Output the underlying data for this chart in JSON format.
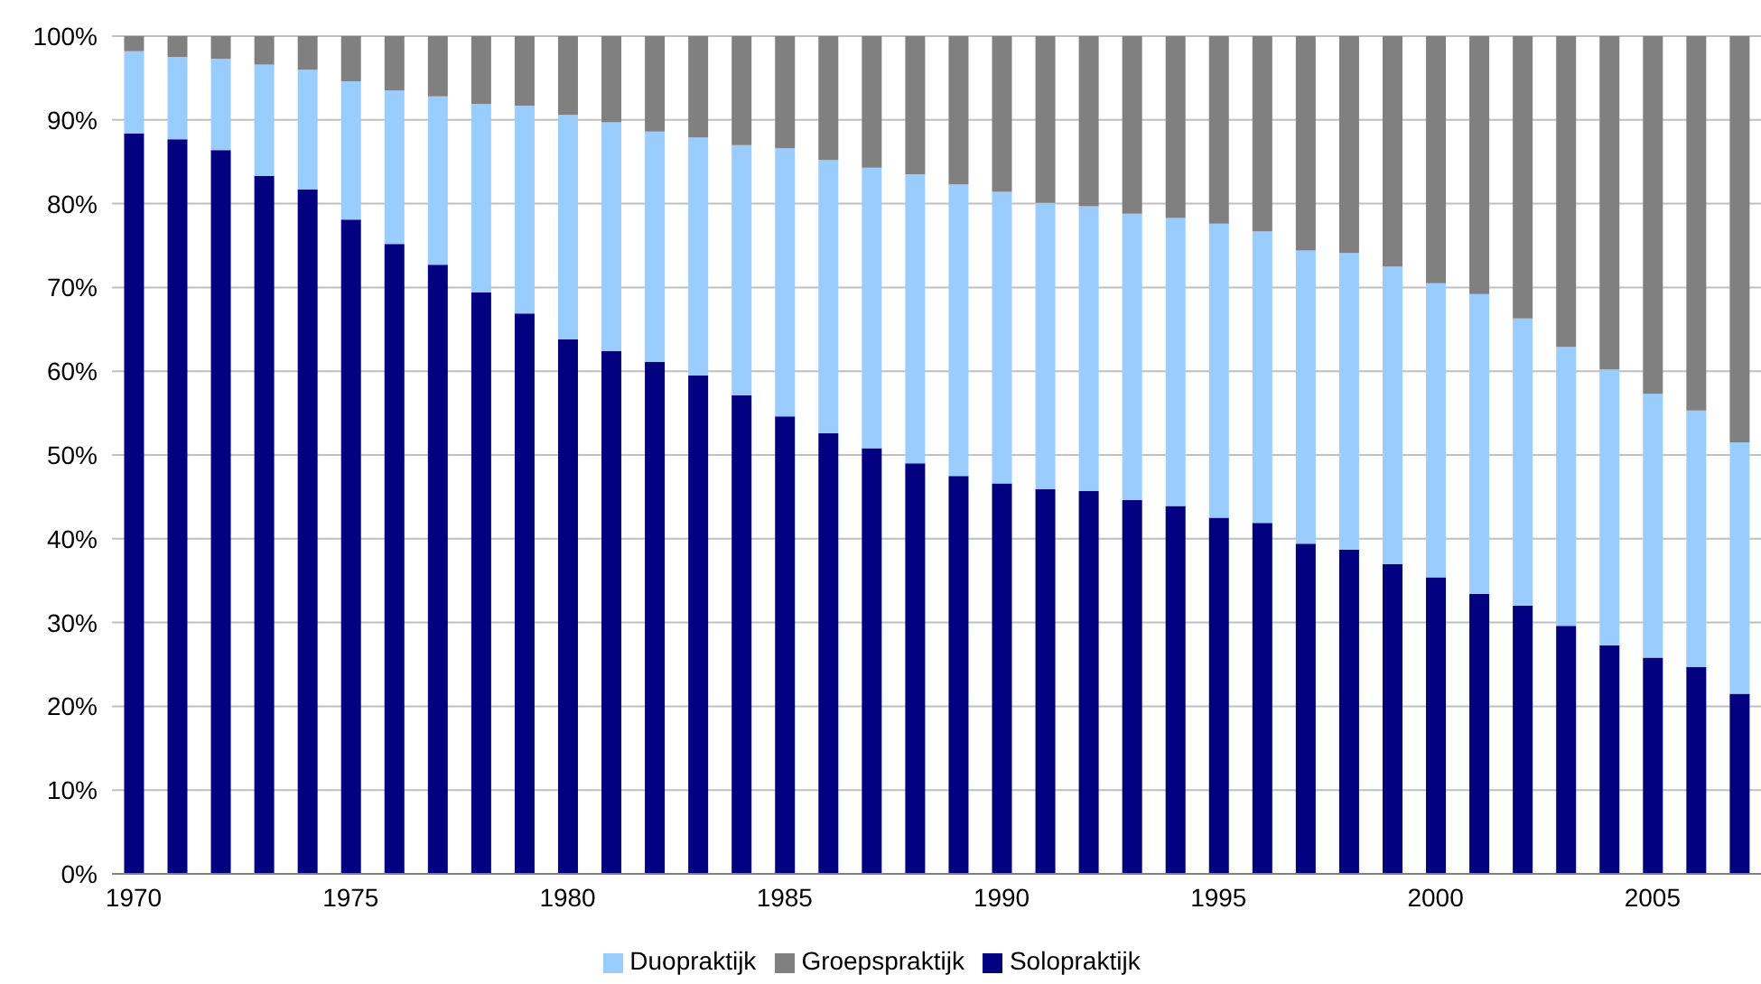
{
  "chart_data": {
    "type": "bar",
    "stacked": true,
    "categories": [
      "1970",
      null,
      null,
      null,
      null,
      "1975",
      null,
      null,
      null,
      null,
      "1980",
      null,
      null,
      null,
      null,
      "1985",
      null,
      null,
      null,
      null,
      "1990",
      null,
      null,
      null,
      null,
      "1995",
      null,
      null,
      null,
      null,
      "2000",
      null,
      null,
      null,
      null,
      "2005",
      null,
      null
    ],
    "series": [
      {
        "name": "Solopraktijk",
        "color": "#000080",
        "values": [
          88.4,
          87.7,
          86.4,
          83.3,
          81.7,
          78.1,
          75.2,
          72.7,
          69.4,
          66.9,
          63.8,
          62.4,
          61.1,
          59.5,
          57.1,
          54.6,
          52.6,
          50.8,
          49.0,
          47.5,
          46.6,
          45.9,
          45.7,
          44.6,
          43.9,
          42.5,
          41.9,
          39.4,
          38.7,
          37.0,
          35.4,
          33.4,
          32.0,
          29.6,
          27.3,
          25.8,
          24.7,
          21.5
        ]
      },
      {
        "name": "Duopraktijk",
        "color": "#99ccff",
        "values": [
          9.8,
          9.8,
          10.9,
          13.3,
          14.3,
          16.5,
          18.3,
          20.1,
          22.5,
          24.8,
          26.8,
          27.3,
          27.5,
          28.4,
          29.9,
          32.0,
          32.6,
          33.5,
          34.5,
          34.8,
          34.8,
          34.2,
          34.0,
          34.2,
          34.4,
          35.1,
          34.8,
          35.0,
          35.4,
          35.5,
          35.1,
          35.8,
          34.3,
          33.3,
          32.9,
          31.5,
          30.6,
          30.0
        ]
      },
      {
        "name": "Groepspraktijk",
        "color": "#808080",
        "values": [
          1.8,
          2.5,
          2.7,
          3.4,
          4.0,
          5.4,
          6.5,
          7.2,
          8.1,
          8.3,
          9.4,
          10.3,
          11.4,
          12.1,
          13.0,
          13.4,
          14.8,
          15.7,
          16.5,
          17.7,
          18.6,
          19.9,
          20.3,
          21.2,
          21.7,
          22.4,
          23.3,
          25.6,
          25.9,
          27.5,
          29.5,
          30.8,
          33.7,
          37.1,
          39.8,
          42.7,
          44.7,
          48.5
        ]
      }
    ],
    "ylim": [
      0,
      100
    ],
    "yticks": [
      {
        "value": 0,
        "label": "0%"
      },
      {
        "value": 10,
        "label": "10%"
      },
      {
        "value": 20,
        "label": "20%"
      },
      {
        "value": 30,
        "label": "30%"
      },
      {
        "value": 40,
        "label": "40%"
      },
      {
        "value": 50,
        "label": "50%"
      },
      {
        "value": 60,
        "label": "60%"
      },
      {
        "value": 70,
        "label": "70%"
      },
      {
        "value": 80,
        "label": "80%"
      },
      {
        "value": 90,
        "label": "90%"
      },
      {
        "value": 100,
        "label": "100%"
      }
    ],
    "grid": "y",
    "legend": "bottom"
  }
}
